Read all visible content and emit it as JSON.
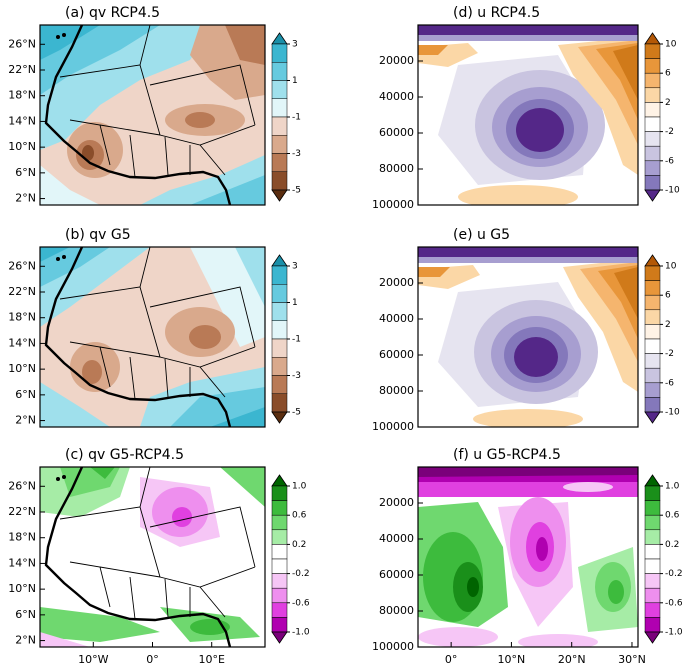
{
  "chart_data": [
    {
      "type": "contour",
      "title": "(a) qv RCP4.5",
      "xlim": [
        -19,
        19
      ],
      "ylim": [
        1,
        29
      ],
      "yticks": [
        {
          "value": 2,
          "label": "2°N"
        },
        {
          "value": 6,
          "label": "6°N"
        },
        {
          "value": 10,
          "label": "10°N"
        },
        {
          "value": 14,
          "label": "14°N"
        },
        {
          "value": 18,
          "label": "18°N"
        },
        {
          "value": 22,
          "label": "22°N"
        },
        {
          "value": 26,
          "label": "26°N"
        }
      ],
      "colorbar": {
        "ticks": [
          3,
          1,
          -1,
          -3,
          -5
        ],
        "colors": [
          "#1a8fa8",
          "#3bb6d0",
          "#66cadf",
          "#9fe0ec",
          "#e2f6f9",
          "#efd5c8",
          "#d9a98c",
          "#b97a56",
          "#8a4d2a",
          "#5a2d10"
        ]
      }
    },
    {
      "type": "contour",
      "title": "(b) qv G5",
      "xlim": [
        -19,
        19
      ],
      "ylim": [
        1,
        29
      ],
      "yticks": [
        {
          "value": 2,
          "label": "2°N"
        },
        {
          "value": 6,
          "label": "6°N"
        },
        {
          "value": 10,
          "label": "10°N"
        },
        {
          "value": 14,
          "label": "14°N"
        },
        {
          "value": 18,
          "label": "18°N"
        },
        {
          "value": 22,
          "label": "22°N"
        },
        {
          "value": 26,
          "label": "26°N"
        }
      ],
      "colorbar": {
        "ticks": [
          3,
          1,
          -1,
          -3,
          -5
        ],
        "colors": [
          "#1a8fa8",
          "#3bb6d0",
          "#66cadf",
          "#9fe0ec",
          "#e2f6f9",
          "#efd5c8",
          "#d9a98c",
          "#b97a56",
          "#8a4d2a",
          "#5a2d10"
        ]
      }
    },
    {
      "type": "contour",
      "title": "(c) qv G5-RCP4.5",
      "xlim": [
        -19,
        19
      ],
      "ylim": [
        1,
        29
      ],
      "xticks": [
        {
          "value": -10,
          "label": "10°W"
        },
        {
          "value": 0,
          "label": "0°"
        },
        {
          "value": 10,
          "label": "10°E"
        }
      ],
      "yticks": [
        {
          "value": 2,
          "label": "2°N"
        },
        {
          "value": 6,
          "label": "6°N"
        },
        {
          "value": 10,
          "label": "10°N"
        },
        {
          "value": 14,
          "label": "14°N"
        },
        {
          "value": 18,
          "label": "18°N"
        },
        {
          "value": 22,
          "label": "22°N"
        },
        {
          "value": 26,
          "label": "26°N"
        }
      ],
      "colorbar": {
        "ticks": [
          {
            "value": 1,
            "label": "1.0"
          },
          0.6,
          0.2,
          -0.2,
          -0.6,
          {
            "value": -1,
            "label": "-1.0"
          }
        ],
        "colors": [
          "#006400",
          "#1a8f1a",
          "#3dbb3d",
          "#6fd86f",
          "#a6eca6",
          "#ffffff",
          "#ffffff",
          "#f6c6f6",
          "#ee8fee",
          "#e040e0",
          "#b000b0",
          "#7a007a"
        ]
      }
    },
    {
      "type": "contour",
      "title": "(d) u RCP4.5",
      "xlim": [
        -5.5,
        31
      ],
      "ylim": [
        100000,
        0
      ],
      "yticks": [
        20000,
        40000,
        60000,
        80000,
        100000
      ],
      "colorbar": {
        "ticks": [
          10,
          6,
          2,
          -2,
          -6,
          -10
        ],
        "colors": [
          "#b35806",
          "#d07a1a",
          "#e8963a",
          "#f5b56e",
          "#fbd7a6",
          "#fff3e6",
          "#ffffff",
          "#e6e4f0",
          "#c9c4e0",
          "#a79ed0",
          "#8478bb",
          "#542788"
        ]
      }
    },
    {
      "type": "contour",
      "title": "(e) u G5",
      "xlim": [
        -5.5,
        31
      ],
      "ylim": [
        100000,
        0
      ],
      "yticks": [
        20000,
        40000,
        60000,
        80000,
        100000
      ],
      "colorbar": {
        "ticks": [
          10,
          6,
          2,
          -2,
          -6,
          -10
        ],
        "colors": [
          "#b35806",
          "#d07a1a",
          "#e8963a",
          "#f5b56e",
          "#fbd7a6",
          "#fff3e6",
          "#ffffff",
          "#e6e4f0",
          "#c9c4e0",
          "#a79ed0",
          "#8478bb",
          "#542788"
        ]
      }
    },
    {
      "type": "contour",
      "title": "(f) u G5-RCP4.5",
      "xlim": [
        -5.5,
        31
      ],
      "ylim": [
        100000,
        0
      ],
      "xticks": [
        {
          "value": 0,
          "label": "0°"
        },
        {
          "value": 10,
          "label": "10°N"
        },
        {
          "value": 20,
          "label": "20°N"
        },
        {
          "value": 30,
          "label": "30°N"
        }
      ],
      "yticks": [
        20000,
        40000,
        60000,
        80000,
        100000
      ],
      "colorbar": {
        "ticks": [
          {
            "value": 1,
            "label": "1.0"
          },
          0.6,
          0.2,
          -0.2,
          -0.6,
          {
            "value": -1,
            "label": "-1.0"
          }
        ],
        "colors": [
          "#006400",
          "#1a8f1a",
          "#3dbb3d",
          "#6fd86f",
          "#a6eca6",
          "#ffffff",
          "#ffffff",
          "#f6c6f6",
          "#ee8fee",
          "#e040e0",
          "#b000b0",
          "#7a007a"
        ]
      }
    }
  ]
}
